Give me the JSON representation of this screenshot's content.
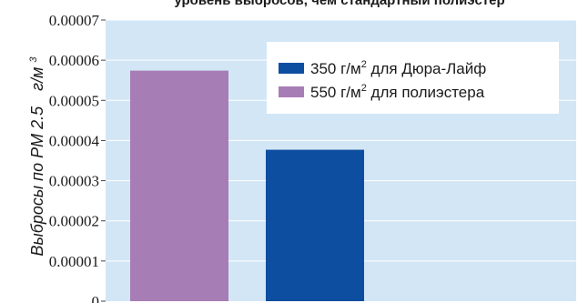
{
  "chart_data": {
    "type": "bar",
    "title": "уровень выбросов, чем стандартный полиэстер",
    "ylabel": "Выбросы по PM 2.5",
    "ylabel_unit": "г/м",
    "ylabel_unit_sup": "3",
    "ylim": [
      0,
      7e-05
    ],
    "yticks": [
      {
        "value": 0,
        "label": "0"
      },
      {
        "value": 1e-05,
        "label": "0.00001"
      },
      {
        "value": 2e-05,
        "label": "0.00002"
      },
      {
        "value": 3e-05,
        "label": "0.00003"
      },
      {
        "value": 4e-05,
        "label": "0.00004"
      },
      {
        "value": 5e-05,
        "label": "0.00005"
      },
      {
        "value": 6e-05,
        "label": "0.00006"
      },
      {
        "value": 7e-05,
        "label": "0.00007"
      }
    ],
    "grid": true,
    "legend_position": "top-right",
    "series": [
      {
        "name_main": "550 г/м",
        "name_sup": "2",
        "name_rest": " для полиэстера",
        "value": 5.74e-05,
        "color": "#a77db5"
      },
      {
        "name_main": "350 г/м",
        "name_sup": "2",
        "name_rest": " для Дюра-Лайф",
        "value": 3.77e-05,
        "color": "#0e4ea0"
      }
    ],
    "legend_order": [
      1,
      0
    ],
    "colors": {
      "plot_background": "#d2e6f6",
      "grid": "#ffffff",
      "page_background": "#ffffff"
    }
  }
}
